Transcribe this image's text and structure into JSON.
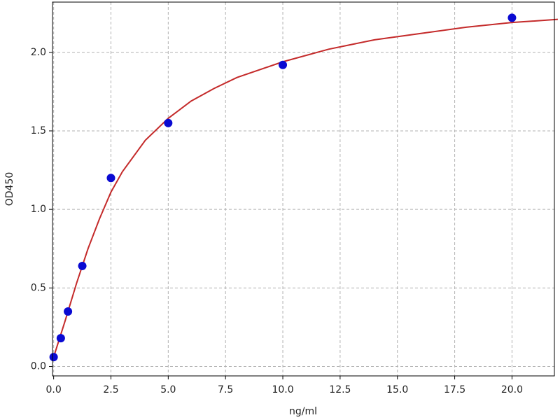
{
  "chart_data": {
    "type": "scatter",
    "xlabel": "ng/ml",
    "ylabel": "OD450",
    "xlim": [
      -0.05,
      21.85
    ],
    "ylim": [
      -0.06,
      2.32
    ],
    "xticks": [
      {
        "value": 0,
        "label": "0.0"
      },
      2.5,
      {
        "value": 5,
        "label": "5.0"
      },
      7.5,
      {
        "value": 10,
        "label": "10.0"
      },
      12.5,
      {
        "value": 15,
        "label": "15.0"
      },
      17.5,
      {
        "value": 20,
        "label": "20.0"
      }
    ],
    "yticks": [
      {
        "value": 0,
        "label": "0.0"
      },
      0.5,
      {
        "value": 1,
        "label": "1.0"
      },
      1.5,
      {
        "value": 2,
        "label": "2.0"
      }
    ],
    "grid": true,
    "series": [
      {
        "type": "line",
        "color": "#c42a2a",
        "x": [
          0,
          0.5,
          1,
          1.5,
          2,
          2.5,
          3,
          4,
          5,
          6,
          7,
          8,
          10,
          12,
          14,
          16,
          18,
          20,
          22
        ],
        "values": [
          0.06,
          0.29,
          0.53,
          0.75,
          0.94,
          1.11,
          1.24,
          1.44,
          1.58,
          1.69,
          1.77,
          1.84,
          1.94,
          2.02,
          2.08,
          2.12,
          2.16,
          2.19,
          2.21
        ]
      },
      {
        "type": "scatter",
        "color": "#0a0ad2",
        "x": [
          0,
          0.3125,
          0.625,
          1.25,
          2.5,
          5,
          10,
          20
        ],
        "values": [
          0.06,
          0.18,
          0.35,
          0.64,
          1.2,
          1.55,
          1.92,
          2.22
        ]
      }
    ]
  }
}
